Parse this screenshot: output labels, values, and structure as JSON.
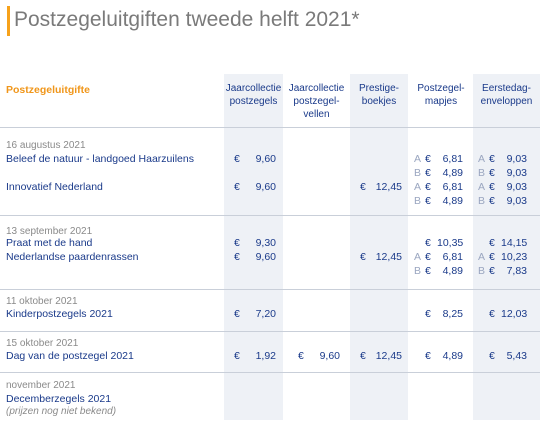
{
  "title": "Postzegeluitgiften tweede helft 2021*",
  "headers": {
    "issue": "Postzegeluitgifte",
    "jaar_postzegels": [
      "Jaarcollectie",
      "postzegels"
    ],
    "jaar_vellen": [
      "Jaarcollectie",
      "postzegel-",
      "vellen"
    ],
    "prestige": [
      "Prestige-",
      "boekjes"
    ],
    "mapjes": [
      "Postzegel-",
      "mapjes"
    ],
    "enveloppen": [
      "Eerstedag-",
      "enveloppen"
    ]
  },
  "groups": [
    {
      "date": "16 augustus 2021"
    },
    {
      "date": "13 september 2021"
    },
    {
      "date": "11 oktober 2021"
    },
    {
      "date": "15 oktober 2021"
    },
    {
      "date": "november 2021",
      "note": "(prijzen nog niet bekend)"
    }
  ],
  "rows": [
    {
      "name": "Beleef de natuur - landgoed Haarzuilens",
      "jaar": "9,60",
      "mapjes": [
        {
          "label": "A",
          "value": "6,81"
        },
        {
          "label": "B",
          "value": "4,89"
        }
      ],
      "env": [
        {
          "label": "A",
          "value": "9,03"
        },
        {
          "label": "B",
          "value": "9,03"
        }
      ]
    },
    {
      "name": "Innovatief Nederland",
      "jaar": "9,60",
      "prestige": "12,45",
      "mapjes": [
        {
          "label": "A",
          "value": "6,81"
        },
        {
          "label": "B",
          "value": "4,89"
        }
      ],
      "env": [
        {
          "label": "A",
          "value": "9,03"
        },
        {
          "label": "B",
          "value": "9,03"
        }
      ]
    },
    {
      "name": "Praat met de hand",
      "jaar": "9,30",
      "mapjes_single": "10,35",
      "env_single": "14,15"
    },
    {
      "name": "Nederlandse paardenrassen",
      "jaar": "9,60",
      "prestige": "12,45",
      "mapjes": [
        {
          "label": "A",
          "value": "6,81"
        },
        {
          "label": "B",
          "value": "4,89"
        }
      ],
      "env": [
        {
          "label": "A",
          "value": "10,23"
        },
        {
          "label": "B",
          "value": "7,83"
        }
      ]
    },
    {
      "name": "Kinderpostzegels 2021",
      "jaar": "7,20",
      "mapjes_single": "8,25",
      "env_single": "12,03"
    },
    {
      "name": "Dag van de postzegel 2021",
      "jaar": "1,92",
      "vellen": "9,60",
      "prestige": "12,45",
      "mapjes_single": "4,89",
      "env_single": "5,43"
    },
    {
      "name": "Decemberzegels 2021"
    }
  ],
  "currency": "€",
  "colors": {
    "accent": "#f0961a",
    "text": "#1a3a8a",
    "column_shade": "#eef1f6"
  }
}
